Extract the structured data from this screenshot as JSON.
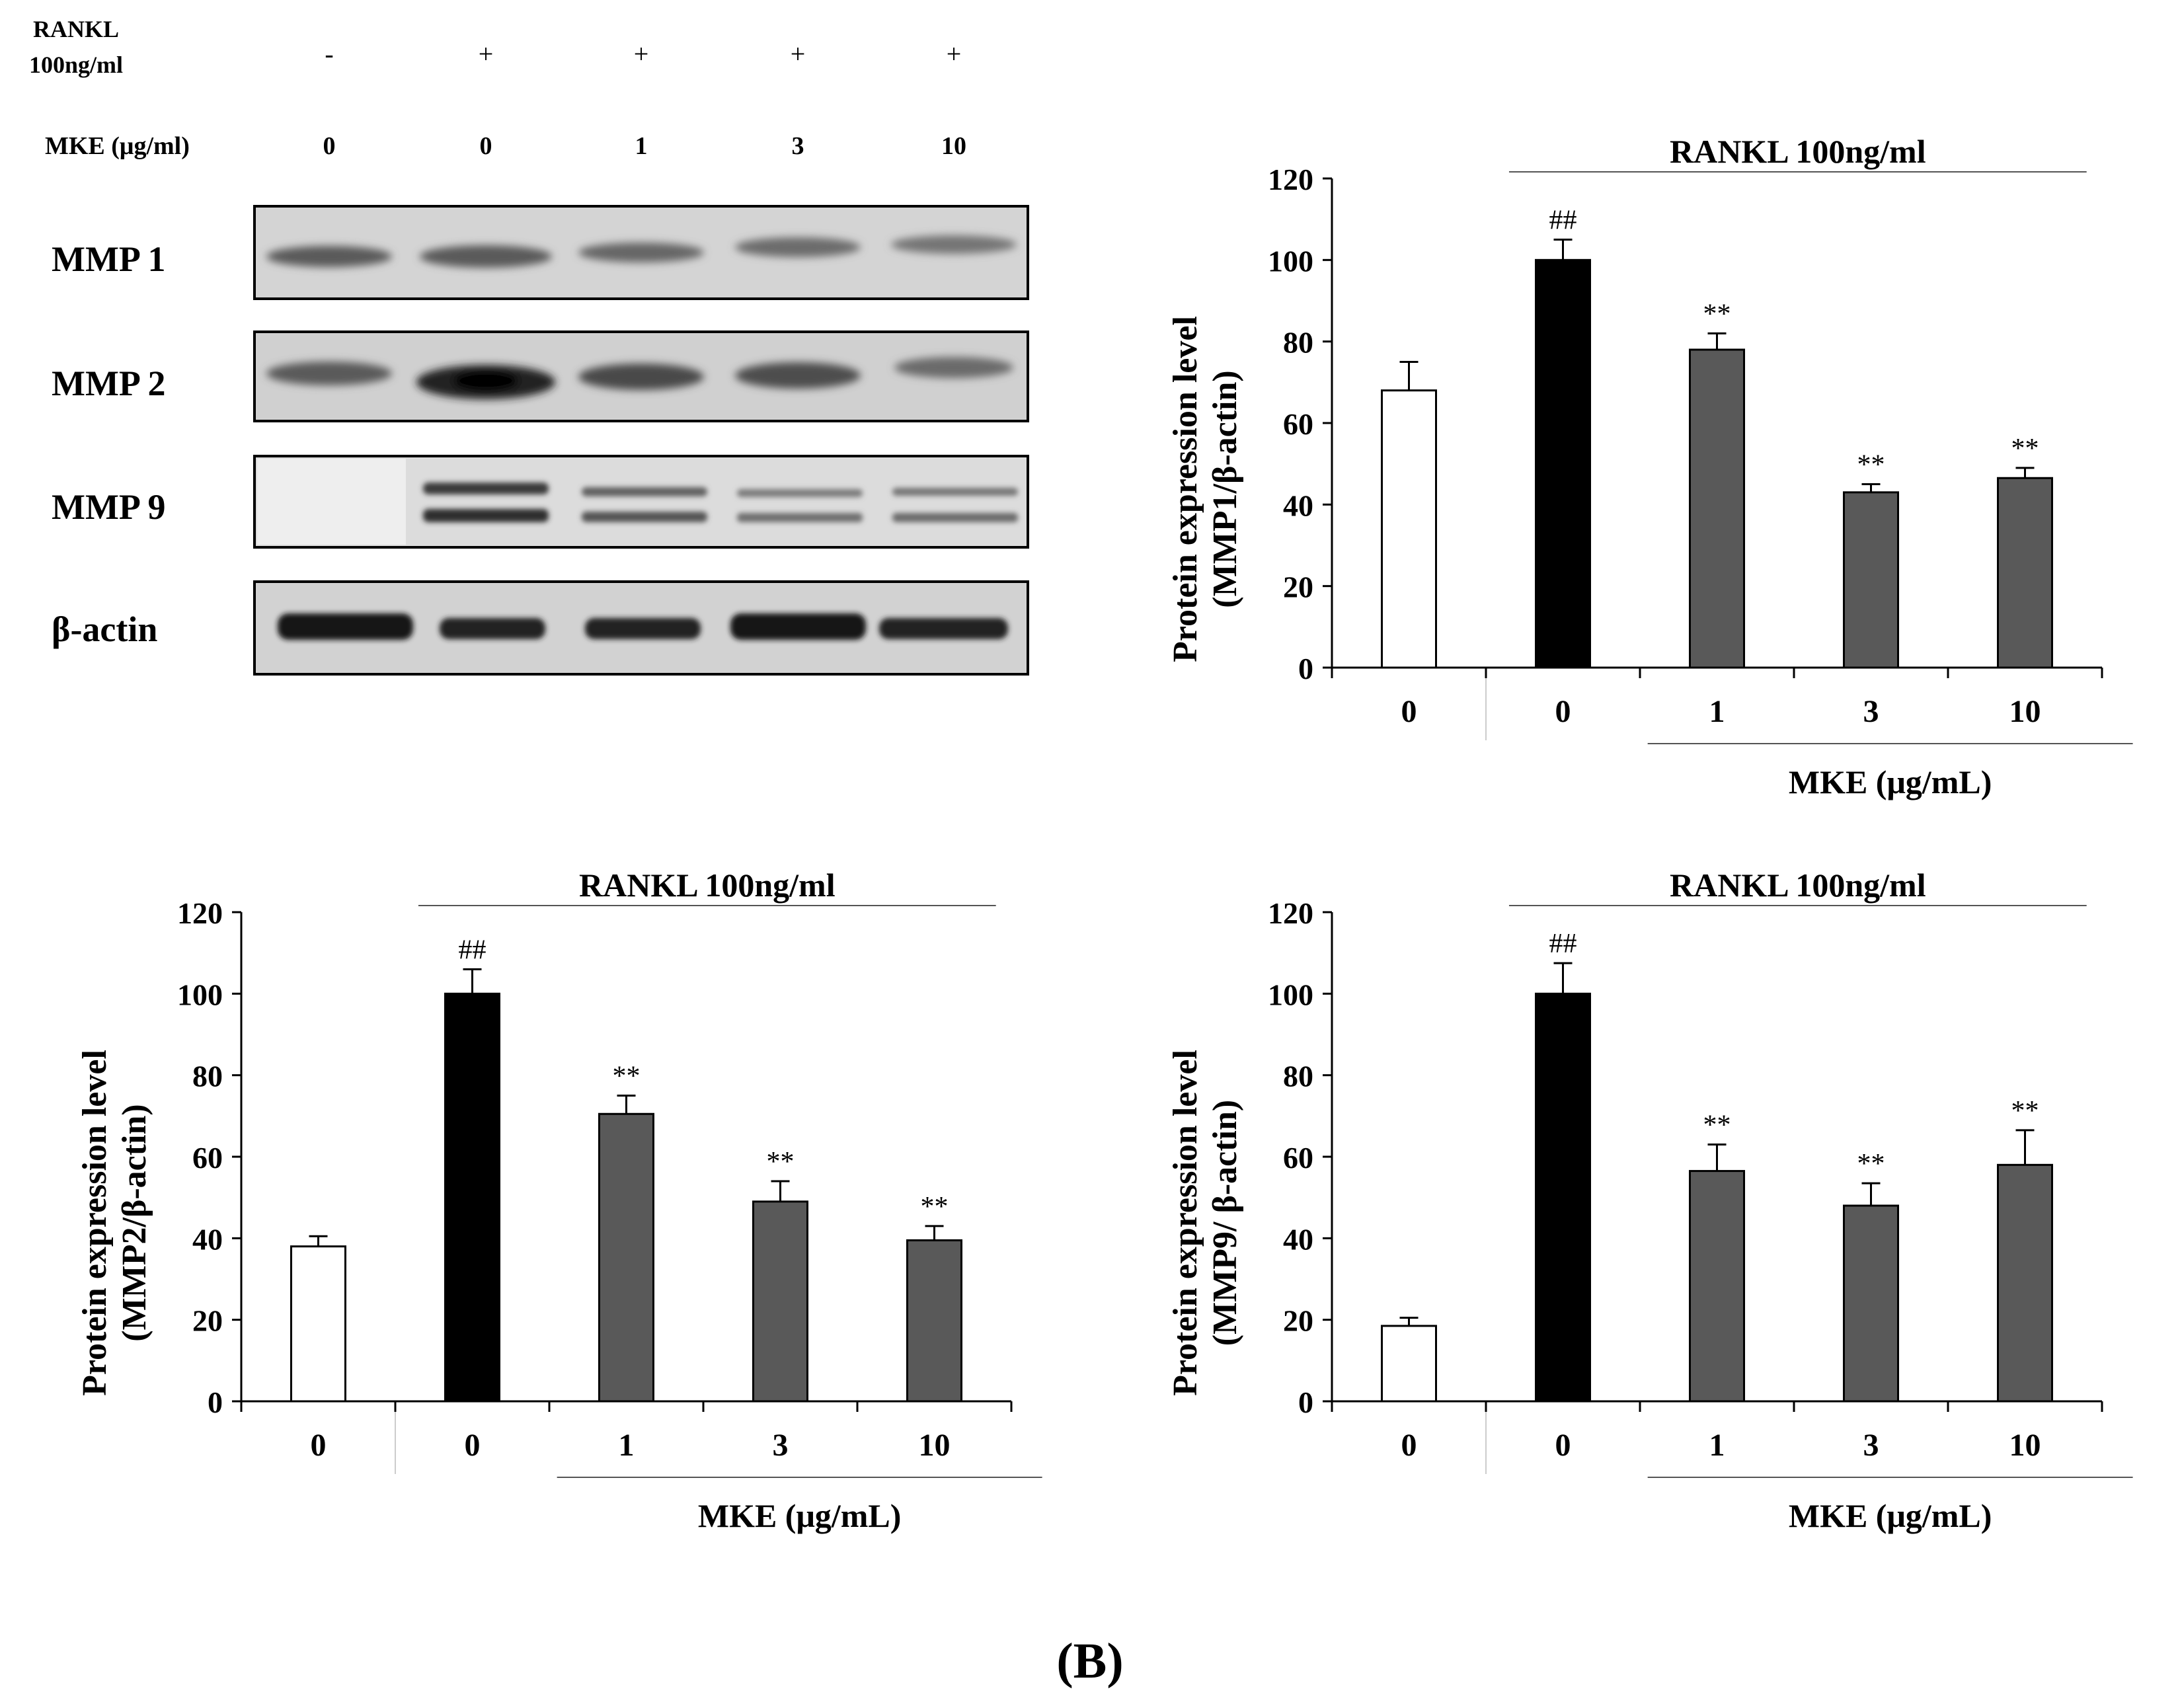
{
  "blot": {
    "rankl_label_line1": "RANKL",
    "rankl_label_line2": "100ng/ml",
    "rankl_signs": [
      "-",
      "+",
      "+",
      "+",
      "+"
    ],
    "mke_label": "MKE (μg/ml)",
    "mke_values": [
      "0",
      "0",
      "1",
      "3",
      "10"
    ],
    "rows": [
      {
        "label": "MMP 1"
      },
      {
        "label": "MMP 2"
      },
      {
        "label": "MMP 9"
      },
      {
        "label": "β-actin"
      }
    ]
  },
  "panel_label": "(B)",
  "chart_data": [
    {
      "type": "bar",
      "categories": [
        "0",
        "0",
        "1",
        "3",
        "10"
      ],
      "values": [
        68,
        100,
        78,
        43,
        46.5
      ],
      "errors": [
        7,
        5,
        4,
        2,
        2.5
      ],
      "annotations": [
        "",
        "##",
        "**",
        "**",
        "**"
      ],
      "bar_colors": [
        "#ffffff",
        "#000000",
        "#595959",
        "#595959",
        "#595959"
      ],
      "ylabel_line1": "Protein expression level",
      "ylabel_line2": "(MMP1/β-actin)",
      "ylim": [
        0,
        120
      ],
      "yticks": [
        "0",
        "20",
        "40",
        "60",
        "80",
        "100",
        "120"
      ],
      "group_top": "RANKL 100ng/ml",
      "group_bottom": "MKE (μg/mL)",
      "grid": false
    },
    {
      "type": "bar",
      "categories": [
        "0",
        "0",
        "1",
        "3",
        "10"
      ],
      "values": [
        38,
        100,
        70.5,
        49,
        39.5
      ],
      "errors": [
        2.5,
        6,
        4.5,
        5,
        3.5
      ],
      "annotations": [
        "",
        "##",
        "**",
        "**",
        "**"
      ],
      "bar_colors": [
        "#ffffff",
        "#000000",
        "#595959",
        "#595959",
        "#595959"
      ],
      "ylabel_line1": "Protein expression level",
      "ylabel_line2": "(MMP2/β-actin)",
      "ylim": [
        0,
        120
      ],
      "yticks": [
        "0",
        "20",
        "40",
        "60",
        "80",
        "100",
        "120"
      ],
      "group_top": "RANKL 100ng/ml",
      "group_bottom": "MKE (μg/mL)",
      "grid": false
    },
    {
      "type": "bar",
      "categories": [
        "0",
        "0",
        "1",
        "3",
        "10"
      ],
      "values": [
        18.5,
        100,
        56.5,
        48,
        58
      ],
      "errors": [
        2,
        7.5,
        6.5,
        5.5,
        8.5
      ],
      "annotations": [
        "",
        "##",
        "**",
        "**",
        "**"
      ],
      "bar_colors": [
        "#ffffff",
        "#000000",
        "#595959",
        "#595959",
        "#595959"
      ],
      "ylabel_line1": "Protein expression level",
      "ylabel_line2": "(MMP9/ β-actin)",
      "ylim": [
        0,
        120
      ],
      "yticks": [
        "0",
        "20",
        "40",
        "60",
        "80",
        "100",
        "120"
      ],
      "group_top": "RANKL 100ng/ml",
      "group_bottom": "MKE (μg/mL)",
      "grid": false
    }
  ]
}
